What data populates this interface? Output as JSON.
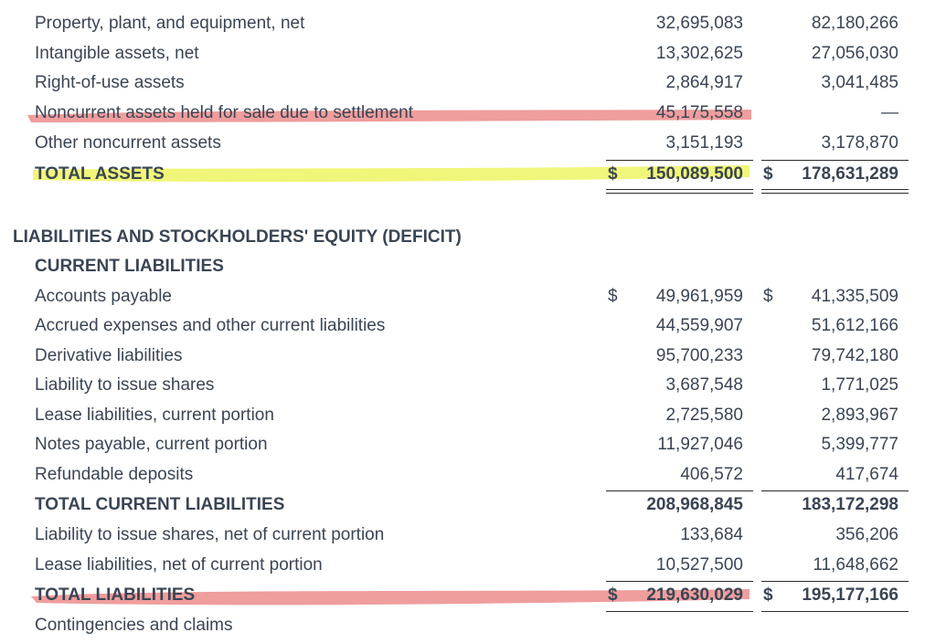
{
  "colors": {
    "red_highlight": "#ec8c8c",
    "yellow_highlight": "#eef56a",
    "text": "#3a4553"
  },
  "rows": [
    {
      "label": "Property, plant, and equipment, net",
      "v1": "32,695,083",
      "v2": "82,180,266"
    },
    {
      "label": "Intangible assets, net",
      "v1": "13,302,625",
      "v2": "27,056,030"
    },
    {
      "label": "Right-of-use assets",
      "v1": "2,864,917",
      "v2": "3,041,485"
    },
    {
      "label": "Noncurrent assets held for sale due to settlement",
      "v1": "45,175,558",
      "v2": "—"
    },
    {
      "label": "Other noncurrent assets",
      "v1": "3,151,193",
      "v2": "3,178,870"
    },
    {
      "label": "TOTAL ASSETS",
      "dollar": "$",
      "v1": "150,089,500",
      "v2": "178,631,289"
    },
    {
      "label": "LIABILITIES AND STOCKHOLDERS' EQUITY (DEFICIT)"
    },
    {
      "label": "CURRENT LIABILITIES"
    },
    {
      "label": "Accounts payable",
      "dollar": "$",
      "v1": "49,961,959",
      "v2": "41,335,509"
    },
    {
      "label": "Accrued expenses and other current liabilities",
      "v1": "44,559,907",
      "v2": "51,612,166"
    },
    {
      "label": "Derivative liabilities",
      "v1": "95,700,233",
      "v2": "79,742,180"
    },
    {
      "label": "Liability to issue shares",
      "v1": "3,687,548",
      "v2": "1,771,025"
    },
    {
      "label": "Lease liabilities, current portion",
      "v1": "2,725,580",
      "v2": "2,893,967"
    },
    {
      "label": "Notes payable, current portion",
      "v1": "11,927,046",
      "v2": "5,399,777"
    },
    {
      "label": "Refundable deposits",
      "v1": "406,572",
      "v2": "417,674"
    },
    {
      "label": "TOTAL CURRENT LIABILITIES",
      "v1": "208,968,845",
      "v2": "183,172,298"
    },
    {
      "label": "Liability to issue shares, net of current portion",
      "v1": "133,684",
      "v2": "356,206"
    },
    {
      "label": "Lease liabilities, net of current portion",
      "v1": "10,527,500",
      "v2": "11,648,662"
    },
    {
      "label": "TOTAL LIABILITIES",
      "dollar": "$",
      "v1": "219,630,029",
      "v2": "195,177,166"
    },
    {
      "label": "Contingencies and claims"
    }
  ]
}
